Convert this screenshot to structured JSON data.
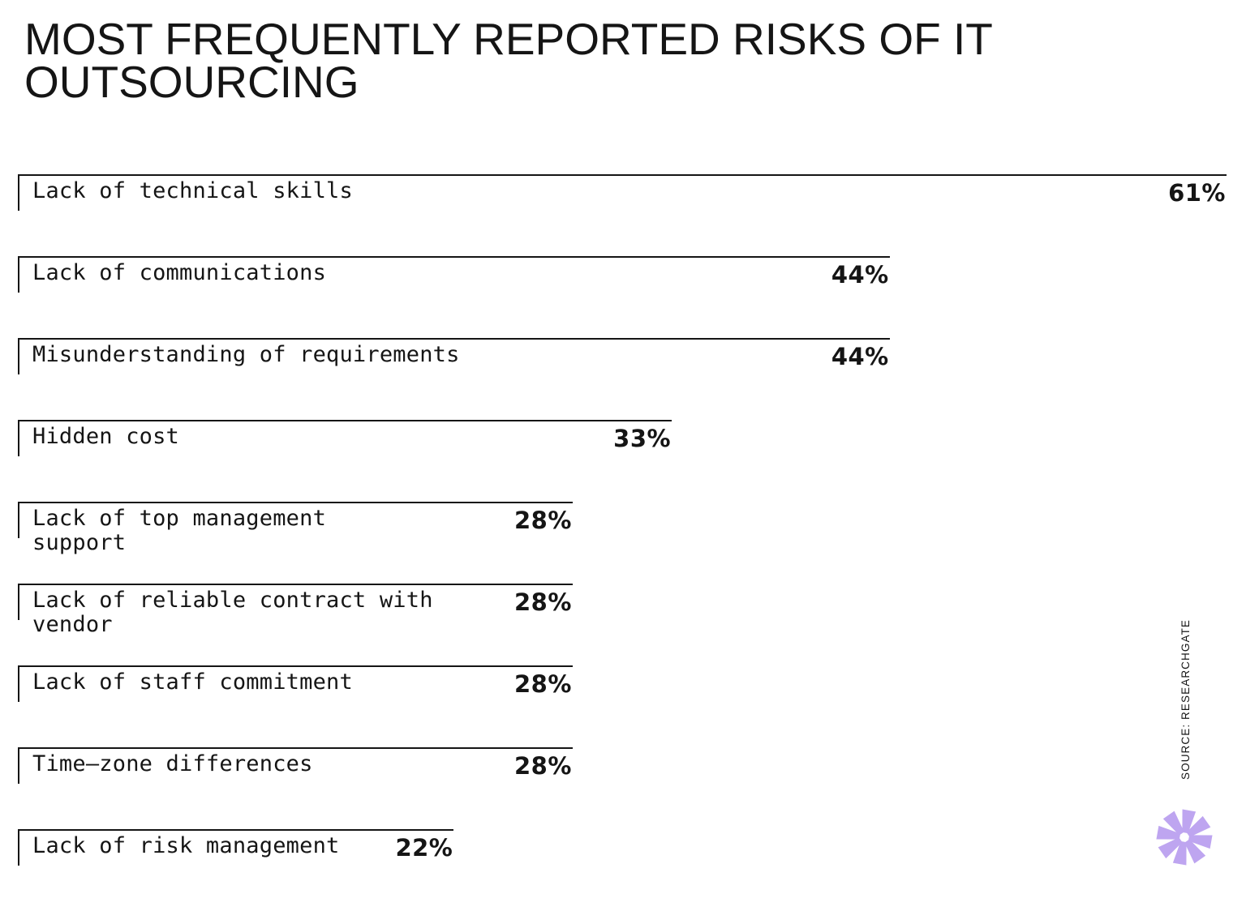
{
  "colors": {
    "text": "#151515",
    "line": "#151515",
    "background": "#ffffff",
    "logo_accent": "#bea5f0"
  },
  "chart_data": {
    "type": "bar",
    "orientation": "horizontal",
    "title": "MOST FREQUENTLY REPORTED RISKS OF IT\nOUTSOURCING",
    "source": "SOURCE: RESEARCHGATE",
    "unit": "%",
    "xlim": [
      0,
      61
    ],
    "categories": [
      "Lack of technical skills",
      "Lack of communications",
      "Misunderstanding of requirements",
      "Hidden cost",
      "Lack of top management\nsupport",
      "Lack of reliable contract with\nvendor",
      "Lack of staff commitment",
      "Time–zone differences",
      "Lack of risk management"
    ],
    "values": [
      61,
      44,
      44,
      33,
      28,
      28,
      28,
      28,
      22
    ],
    "value_labels": [
      "61%",
      "44%",
      "44%",
      "33%",
      "28%",
      "28%",
      "28%",
      "28%",
      "22%"
    ],
    "bar_style": "outline-top-left-bracket, category label inside left, value label inside right end of bar",
    "grid": "off",
    "legend": "none"
  }
}
